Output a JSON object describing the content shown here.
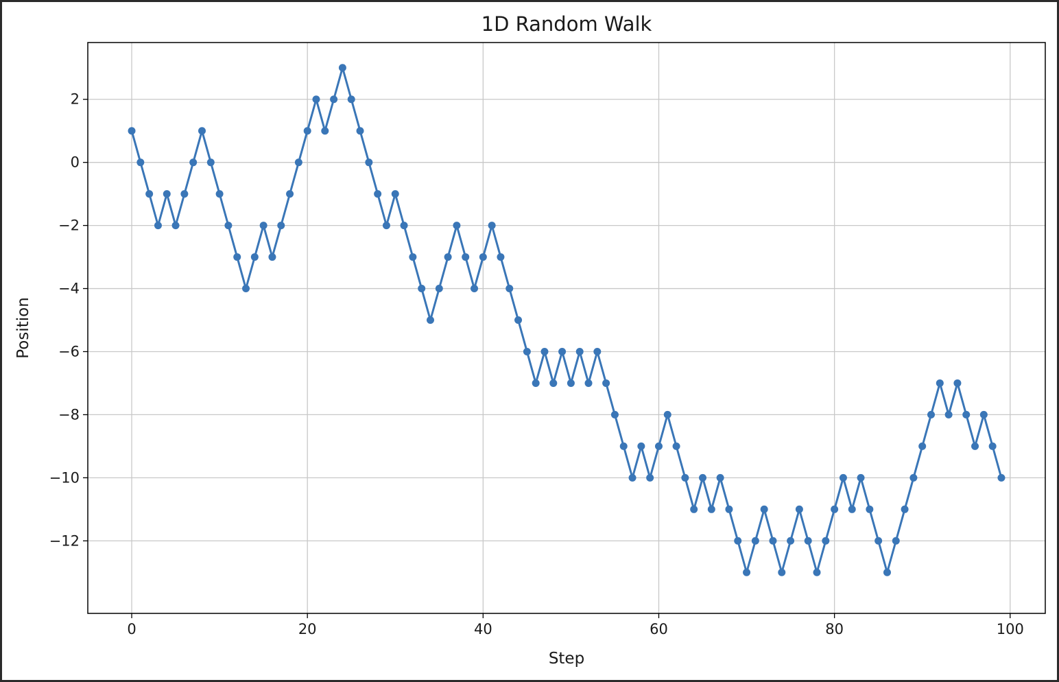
{
  "colors": {
    "line": "#3a76b7",
    "grid": "#c8c8c8",
    "axes": "#000000",
    "frame": "#2b2b2b"
  },
  "chart_data": {
    "type": "line",
    "title": "1D Random Walk",
    "xlabel": "Step",
    "ylabel": "Position",
    "xlim": [
      -5,
      104
    ],
    "ylim": [
      -14.3,
      3.8
    ],
    "xticks": [
      0,
      20,
      40,
      60,
      80,
      100
    ],
    "xtick_labels": [
      "0",
      "20",
      "40",
      "60",
      "80",
      "100"
    ],
    "yticks": [
      2,
      0,
      -2,
      -4,
      -6,
      -8,
      -10,
      -12
    ],
    "ytick_labels": [
      "2",
      "0",
      "−2",
      "−4",
      "−6",
      "−8",
      "−10",
      "−12"
    ],
    "grid": true,
    "marker": "circle",
    "series": [
      {
        "x": [
          0,
          1,
          2,
          3,
          4,
          5,
          6,
          7,
          8,
          9,
          10,
          11,
          12,
          13,
          14,
          15,
          16,
          17,
          18,
          19,
          20,
          21,
          22,
          23,
          24,
          25,
          26,
          27,
          28,
          29,
          30,
          31,
          32,
          33,
          34,
          35,
          36,
          37,
          38,
          39,
          40,
          41,
          42,
          43,
          44,
          45,
          46,
          47,
          48,
          49,
          50,
          51,
          52,
          53,
          54,
          55,
          56,
          57,
          58,
          59,
          60,
          61,
          62,
          63,
          64,
          65,
          66,
          67,
          68,
          69,
          70,
          71,
          72,
          73,
          74,
          75,
          76,
          77,
          78,
          79,
          80,
          81,
          82,
          83,
          84,
          85,
          86,
          87,
          88,
          89,
          90,
          91,
          92,
          93,
          94,
          95,
          96,
          97,
          98,
          99
        ],
        "values": [
          1,
          0,
          -1,
          -2,
          -1,
          -2,
          -1,
          0,
          1,
          0,
          -1,
          -2,
          -3,
          -4,
          -3,
          -2,
          -3,
          -2,
          -1,
          0,
          1,
          2,
          1,
          2,
          3,
          2,
          1,
          0,
          -1,
          -2,
          -1,
          -2,
          -3,
          -4,
          -5,
          -4,
          -3,
          -2,
          -3,
          -4,
          -3,
          -2,
          -3,
          -4,
          -5,
          -6,
          -7,
          -6,
          -7,
          -6,
          -7,
          -6,
          -7,
          -6,
          -7,
          -8,
          -9,
          -10,
          -9,
          -10,
          -9,
          -8,
          -9,
          -10,
          -11,
          -10,
          -11,
          -10,
          -11,
          -12,
          -13,
          -12,
          -11,
          -12,
          -13,
          -12,
          -11,
          -12,
          -13,
          -12,
          -11,
          -10,
          -11,
          -10,
          -11,
          -12,
          -13,
          -12,
          -11,
          -10,
          -9,
          -8,
          -7,
          -8,
          -7,
          -8,
          -9,
          -8,
          -9,
          -10
        ]
      }
    ]
  }
}
